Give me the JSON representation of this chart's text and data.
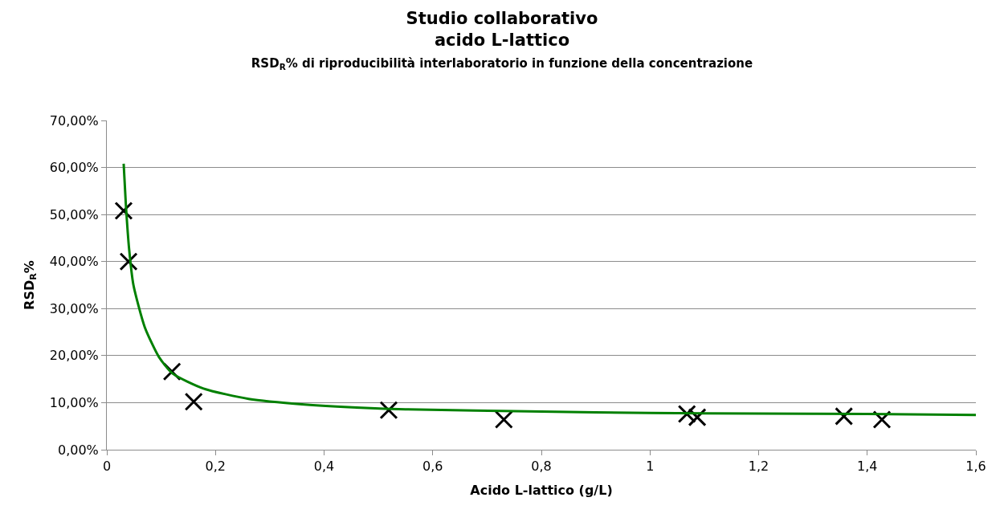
{
  "chart_data": {
    "type": "scatter",
    "title": "Studio collaborativo\nacido L-lattico",
    "subtitle": "RSD$_{R}$% di riproducibilità interlaboratorio in funzione della concentrazione",
    "xlabel": "Acido L-lattico (g/L)",
    "ylabel": "RSD$_{R}$%",
    "series": [
      {
        "color": "#000000",
        "marker": "cross",
        "x": [
          0.031,
          0.04,
          0.12,
          0.16,
          0.519,
          0.731,
          1.068,
          1.087,
          1.357,
          1.427
        ],
        "values": [
          50.8,
          40.0,
          16.6,
          10.2,
          8.4,
          6.4,
          7.6,
          6.9,
          7.1,
          6.4
        ]
      },
      {
        "type": "line",
        "color": "#008000",
        "marker": "none",
        "line_style": "solid",
        "x": [
          0.031,
          0.035,
          0.041,
          0.049,
          0.07,
          0.096,
          0.121,
          0.178,
          0.261,
          0.364,
          0.468,
          0.55,
          0.8,
          1.0,
          1.2,
          1.4,
          1.6
        ],
        "values": [
          60.8,
          52.2,
          42.7,
          35.0,
          26.0,
          19.7,
          16.2,
          13.0,
          10.8,
          9.6,
          8.9,
          8.6,
          8.1,
          7.8,
          7.7,
          7.6,
          7.4
        ]
      }
    ],
    "xlim": [
      0,
      1.6
    ],
    "xticks": [
      0,
      {
        "value": 0.2,
        "label": "0,2"
      },
      {
        "value": 0.4,
        "label": "0,4"
      },
      {
        "value": 0.6,
        "label": "0,6"
      },
      {
        "value": 0.8,
        "label": "0,8"
      },
      1,
      {
        "value": 1.2,
        "label": "1,2"
      },
      {
        "value": 1.4,
        "label": "1,4"
      },
      {
        "value": 1.6,
        "label": "1,6"
      }
    ],
    "ylim": [
      0,
      70
    ],
    "yticks": [
      {
        "value": 0,
        "label": "0,00%"
      },
      {
        "value": 10,
        "label": "10,00%"
      },
      {
        "value": 20,
        "label": "20,00%"
      },
      {
        "value": 30,
        "label": "30,00%"
      },
      {
        "value": 40,
        "label": "40,00%"
      },
      {
        "value": 50,
        "label": "50,00%"
      },
      {
        "value": 60,
        "label": "60,00%"
      },
      {
        "value": 70,
        "label": "70,00%"
      }
    ],
    "grid": "y"
  }
}
